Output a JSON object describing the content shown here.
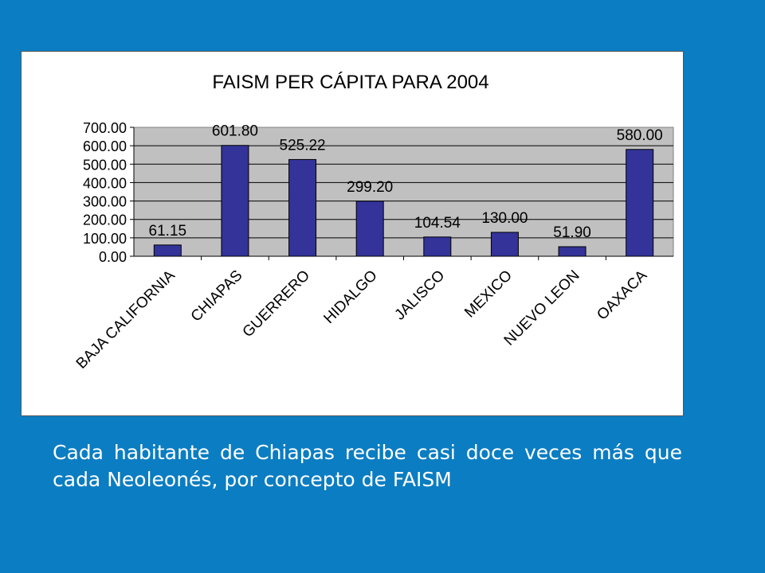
{
  "chart_data": {
    "type": "bar",
    "title": "FAISM PER CÁPITA PARA 2004",
    "categories": [
      "BAJA CALIFORNIA",
      "CHIAPAS",
      "GUERRERO",
      "HIDALGO",
      "JALISCO",
      "MEXICO",
      "NUEVO LEON",
      "OAXACA"
    ],
    "values": [
      61.15,
      601.8,
      525.22,
      299.2,
      104.54,
      130.0,
      51.9,
      580.0
    ],
    "value_labels": [
      "61.15",
      "601.80",
      "525.22",
      "299.20",
      "104.54",
      "130.00",
      "51.90",
      "580.00"
    ],
    "y_ticks": [
      "0.00",
      "100.00",
      "200.00",
      "300.00",
      "400.00",
      "500.00",
      "600.00",
      "700.00"
    ],
    "ylim": [
      0,
      700
    ],
    "grid": true,
    "xlabel": "",
    "ylabel": "",
    "colors": {
      "bar": "#333399",
      "plot_area": "#c0c0c0",
      "background": "#0b7dc2"
    }
  },
  "caption": "Cada habitante de Chiapas recibe casi doce veces más que cada Neoleonés, por concepto de FAISM"
}
